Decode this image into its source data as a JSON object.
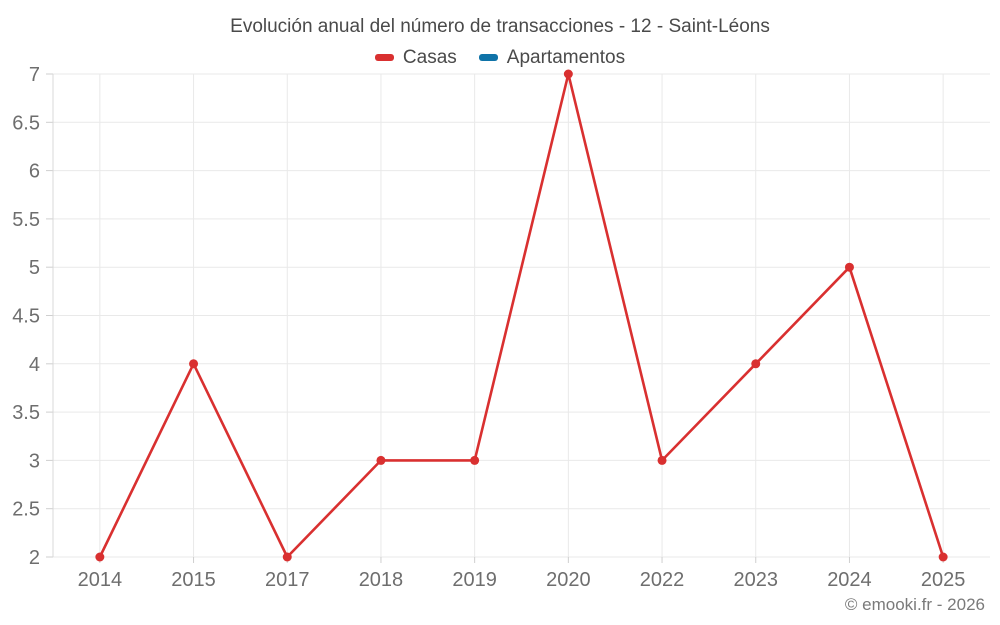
{
  "title": "Evolución anual del número de transacciones - 12 - Saint-Léons",
  "legend": {
    "items": [
      {
        "label": "Casas",
        "color": "#d93030"
      },
      {
        "label": "Apartamentos",
        "color": "#0f73a8"
      }
    ]
  },
  "footer": {
    "credit": "© emooki.fr - 2026"
  },
  "colors": {
    "grid": "#e9e9e9",
    "axis": "#d8d8d8",
    "tick": "#cfcfcf",
    "tick_label": "#6e6e6e",
    "background": "#ffffff"
  },
  "chart_data": {
    "type": "line",
    "title": "Evolución anual del número de transacciones - 12 - Saint-Léons",
    "categories": [
      "2014",
      "2015",
      "2017",
      "2018",
      "2019",
      "2020",
      "2022",
      "2023",
      "2024",
      "2025"
    ],
    "series": [
      {
        "name": "Casas",
        "color": "#d93030",
        "values": [
          2,
          4,
          2,
          3,
          3,
          7,
          3,
          4,
          5,
          2
        ]
      },
      {
        "name": "Apartamentos",
        "color": "#0f73a8",
        "values": []
      }
    ],
    "xlabel": "",
    "ylabel": "",
    "ylim": [
      2,
      7
    ],
    "yticks": [
      2,
      2.5,
      3,
      3.5,
      4,
      4.5,
      5,
      5.5,
      6,
      6.5,
      7
    ],
    "grid": true,
    "legend_position": "top",
    "marker": "circle"
  }
}
